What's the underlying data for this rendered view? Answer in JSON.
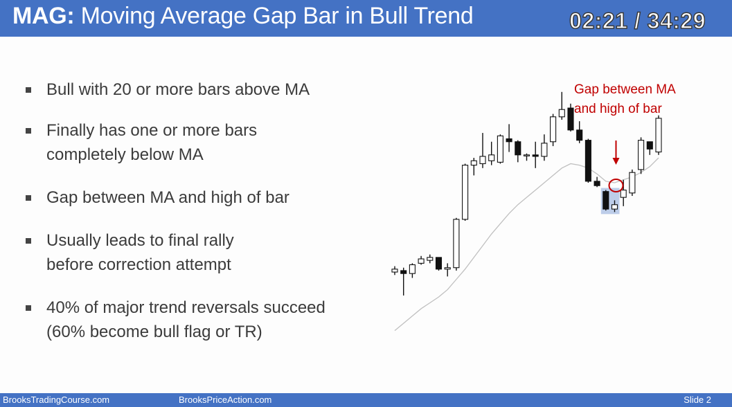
{
  "header": {
    "title_prefix": "MAG:",
    "title_rest": " Moving Average Gap Bar in Bull Trend",
    "timer": "02:21 / 34:29"
  },
  "bullets": [
    {
      "lines": [
        "Bull with 20 or more bars above MA"
      ]
    },
    {
      "lines": [
        "Finally has one or more bars",
        "completely below MA"
      ]
    },
    {
      "lines": [
        "Gap between MA and high of bar"
      ]
    },
    {
      "lines": [
        "Usually leads to final rally",
        "before correction attempt"
      ]
    },
    {
      "lines": [
        "40% of major trend reversals succeed",
        "(60% become bull flag or TR)"
      ]
    }
  ],
  "annotation": {
    "line1": "Gap between MA",
    "line2": "and high of bar"
  },
  "footer": {
    "left": "BrooksTradingCourse.com",
    "mid": "BrooksPriceAction.com",
    "right": "Slide  2"
  },
  "colors": {
    "title_bar": "#4472c4",
    "annotation": "#c00000",
    "highlight": "#4472c4",
    "ma_line": "#c0c0c0"
  },
  "chart_data": {
    "type": "candlestick",
    "bars": [
      {
        "o": 60,
        "h": 64,
        "l": 58,
        "c": 62
      },
      {
        "o": 61,
        "h": 63,
        "l": 44,
        "c": 59
      },
      {
        "o": 59,
        "h": 66,
        "l": 56,
        "c": 65
      },
      {
        "o": 66,
        "h": 71,
        "l": 65,
        "c": 69
      },
      {
        "o": 68,
        "h": 72,
        "l": 66,
        "c": 70
      },
      {
        "o": 70,
        "h": 70,
        "l": 61,
        "c": 62
      },
      {
        "o": 62,
        "h": 66,
        "l": 57,
        "c": 63
      },
      {
        "o": 63,
        "h": 97,
        "l": 61,
        "c": 96
      },
      {
        "o": 96,
        "h": 134,
        "l": 95,
        "c": 133
      },
      {
        "o": 133,
        "h": 138,
        "l": 126,
        "c": 136
      },
      {
        "o": 134,
        "h": 155,
        "l": 131,
        "c": 139
      },
      {
        "o": 136,
        "h": 149,
        "l": 133,
        "c": 140
      },
      {
        "o": 135,
        "h": 154,
        "l": 134,
        "c": 153
      },
      {
        "o": 151,
        "h": 161,
        "l": 142,
        "c": 149
      },
      {
        "o": 149,
        "h": 150,
        "l": 135,
        "c": 140
      },
      {
        "o": 140,
        "h": 141,
        "l": 136,
        "c": 140
      },
      {
        "o": 140,
        "h": 149,
        "l": 131,
        "c": 139
      },
      {
        "o": 139,
        "h": 154,
        "l": 136,
        "c": 148
      },
      {
        "o": 149,
        "h": 168,
        "l": 146,
        "c": 166
      },
      {
        "o": 166,
        "h": 183,
        "l": 164,
        "c": 171
      },
      {
        "o": 172,
        "h": 175,
        "l": 156,
        "c": 157
      },
      {
        "o": 157,
        "h": 163,
        "l": 148,
        "c": 150
      },
      {
        "o": 150,
        "h": 151,
        "l": 121,
        "c": 122
      },
      {
        "o": 122,
        "h": 125,
        "l": 118,
        "c": 119
      },
      {
        "o": 115,
        "h": 116,
        "l": 102,
        "c": 103
      },
      {
        "o": 103,
        "h": 109,
        "l": 101,
        "c": 106
      },
      {
        "o": 111,
        "h": 123,
        "l": 105,
        "c": 116
      },
      {
        "o": 114,
        "h": 130,
        "l": 112,
        "c": 128
      },
      {
        "o": 130,
        "h": 152,
        "l": 127,
        "c": 150
      },
      {
        "o": 149,
        "h": 147,
        "l": 140,
        "c": 144
      },
      {
        "o": 142,
        "h": 167,
        "l": 140,
        "c": 165
      }
    ],
    "moving_average": [
      20,
      25,
      30,
      35,
      39,
      43,
      48,
      55,
      62,
      70,
      78,
      86,
      93,
      100,
      106,
      111,
      116,
      121,
      126,
      131,
      134,
      133,
      131,
      127,
      122,
      121,
      123,
      125,
      128,
      132,
      138
    ],
    "highlighted_bars": [
      24,
      25
    ],
    "circled_bar": 25,
    "annotation_arrow_bar": 25
  }
}
